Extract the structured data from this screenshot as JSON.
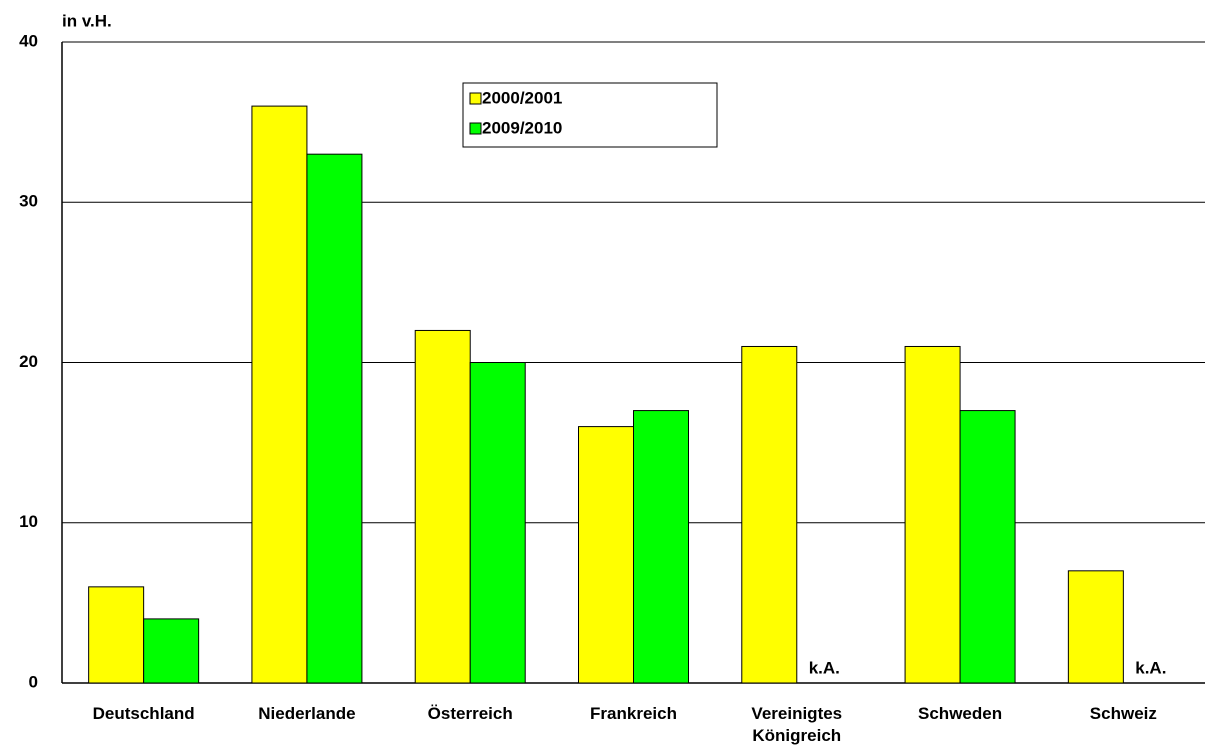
{
  "chart_data": {
    "type": "bar",
    "y_label": "in v.H.",
    "categories": [
      "Deutschland",
      "Niederlande",
      "Österreich",
      "Frankreich",
      "Vereinigtes Königreich",
      "Schweden",
      "Schweiz"
    ],
    "series": [
      {
        "name": "2000/2001",
        "color": "#ffff00",
        "values": [
          6,
          36,
          22,
          16,
          21,
          21,
          7
        ]
      },
      {
        "name": "2009/2010",
        "color": "#00ff00",
        "values": [
          4,
          33,
          20,
          17,
          null,
          17,
          null
        ],
        "value_labels": [
          null,
          null,
          null,
          null,
          "k.A.",
          null,
          "k.A."
        ]
      }
    ],
    "ylim": [
      0,
      40
    ],
    "yticks": [
      0,
      10,
      20,
      30,
      40
    ],
    "grid": true,
    "legend": "top"
  }
}
